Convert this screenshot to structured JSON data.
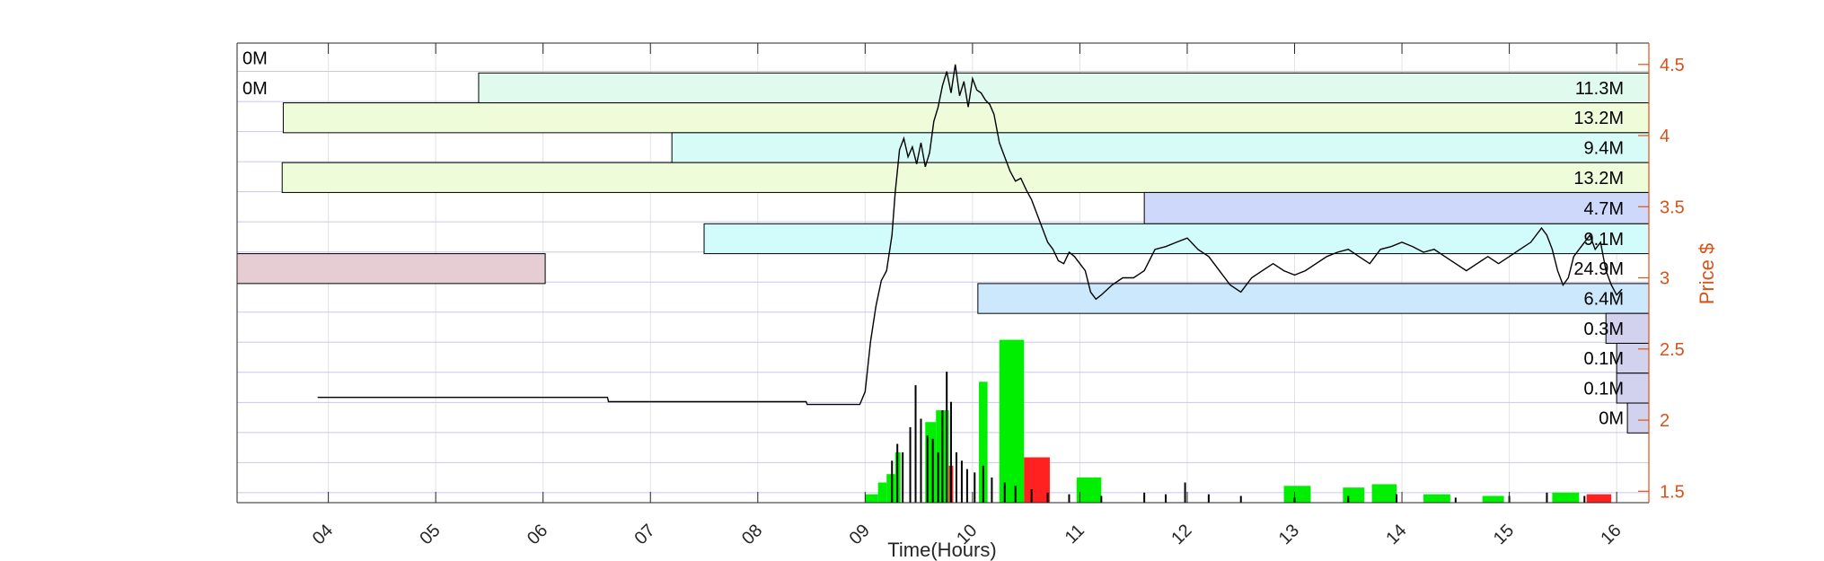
{
  "chart_data": {
    "type": "volume-profile-price",
    "xlabel": "Time(Hours)",
    "ylabel_right": "Price $",
    "x_range": [
      3.15,
      16.3
    ],
    "x_ticks": [
      "04",
      "05",
      "06",
      "07",
      "08",
      "09",
      "10",
      "11",
      "12",
      "13",
      "14",
      "15",
      "16"
    ],
    "x_tick_values": [
      4,
      5,
      6,
      7,
      8,
      9,
      10,
      11,
      12,
      13,
      14,
      15,
      16
    ],
    "price_range": [
      1.42,
      4.65
    ],
    "price_ticks": [
      "1.5",
      "2",
      "2.5",
      "3",
      "3.5",
      "4",
      "4.5"
    ],
    "price_tick_values": [
      1.5,
      2,
      2.5,
      3,
      3.5,
      4,
      4.5
    ],
    "grid": true,
    "colors": {
      "price_axis": "#d95319",
      "grid": "#c8c8ef",
      "buy_volume": "#00ee00",
      "sell_volume": "#ff2020",
      "price_line": "#000000"
    },
    "volume_profile": [
      {
        "label": "0M",
        "price_low": 4.44,
        "price_high": 4.65,
        "x_start": 16.3,
        "color": "#ffffff",
        "label_side": "left"
      },
      {
        "label": "0M",
        "price_low": 4.23,
        "price_high": 4.44,
        "x_start": 16.3,
        "color": "#ffffff",
        "label_side": "left"
      },
      {
        "label": "11.3M",
        "price_low": 4.23,
        "price_high": 4.44,
        "x_start": 5.4,
        "color": "#e0fbee",
        "label_side": "right"
      },
      {
        "label": "13.2M",
        "price_low": 4.02,
        "price_high": 4.23,
        "x_start": 3.58,
        "color": "#eefcd9",
        "label_side": "right"
      },
      {
        "label": "9.4M",
        "price_low": 3.81,
        "price_high": 4.02,
        "x_start": 7.2,
        "color": "#d7fcf8",
        "label_side": "right"
      },
      {
        "label": "13.2M",
        "price_low": 3.6,
        "price_high": 3.81,
        "x_start": 3.57,
        "color": "#eefcd9",
        "label_side": "right"
      },
      {
        "label": "4.7M",
        "price_low": 3.38,
        "price_high": 3.6,
        "x_start": 11.6,
        "color": "#cdd8fb",
        "label_side": "right"
      },
      {
        "label": "9.1M",
        "price_low": 3.17,
        "price_high": 3.38,
        "x_start": 7.5,
        "color": "#d2fcfb",
        "label_side": "right"
      },
      {
        "label": "24.9M",
        "price_low": 2.96,
        "price_high": 3.17,
        "x_start": 3.15,
        "x_end": 6.02,
        "color": "#e5cdd3",
        "label_side": "right"
      },
      {
        "label": "6.4M",
        "price_low": 2.75,
        "price_high": 2.96,
        "x_start": 10.05,
        "color": "#cce8fc",
        "label_side": "right"
      },
      {
        "label": "0.3M",
        "price_low": 2.54,
        "price_high": 2.75,
        "x_start": 15.9,
        "color": "#d2d2ee",
        "label_side": "right"
      },
      {
        "label": "0.1M",
        "price_low": 2.33,
        "price_high": 2.54,
        "x_start": 16.0,
        "color": "#d2d2ee",
        "label_side": "right"
      },
      {
        "label": "0.1M",
        "price_low": 2.12,
        "price_high": 2.33,
        "x_start": 16.0,
        "color": "#d2d2ee",
        "label_side": "right"
      },
      {
        "label": "0M",
        "price_low": 1.91,
        "price_high": 2.12,
        "x_start": 16.1,
        "color": "#d2d2ee",
        "label_side": "right"
      }
    ],
    "price_series": {
      "x": [
        3.9,
        4.9,
        5.9,
        6.6,
        6.61,
        7.5,
        8.45,
        8.46,
        8.95,
        9.0,
        9.05,
        9.1,
        9.15,
        9.2,
        9.25,
        9.28,
        9.32,
        9.36,
        9.4,
        9.44,
        9.48,
        9.52,
        9.56,
        9.6,
        9.64,
        9.68,
        9.72,
        9.76,
        9.8,
        9.84,
        9.88,
        9.92,
        9.96,
        10.0,
        10.04,
        10.08,
        10.12,
        10.16,
        10.2,
        10.25,
        10.3,
        10.35,
        10.4,
        10.45,
        10.5,
        10.55,
        10.6,
        10.65,
        10.7,
        10.75,
        10.8,
        10.85,
        10.9,
        10.95,
        11.0,
        11.05,
        11.1,
        11.15,
        11.2,
        11.3,
        11.4,
        11.5,
        11.6,
        11.7,
        11.8,
        11.9,
        12.0,
        12.1,
        12.2,
        12.3,
        12.4,
        12.5,
        12.6,
        12.7,
        12.8,
        12.9,
        13.0,
        13.1,
        13.2,
        13.3,
        13.4,
        13.5,
        13.6,
        13.7,
        13.8,
        13.9,
        14.0,
        14.1,
        14.2,
        14.3,
        14.4,
        14.5,
        14.6,
        14.7,
        14.8,
        14.9,
        15.0,
        15.1,
        15.2,
        15.3,
        15.35,
        15.4,
        15.45,
        15.5,
        15.55,
        15.6,
        15.65,
        15.7,
        15.75,
        15.8,
        15.85,
        15.9,
        15.95,
        16.0,
        16.05
      ],
      "y": [
        2.16,
        2.16,
        2.16,
        2.16,
        2.13,
        2.13,
        2.13,
        2.11,
        2.11,
        2.2,
        2.55,
        2.8,
        2.98,
        3.05,
        3.3,
        3.6,
        3.9,
        3.98,
        3.85,
        3.92,
        3.8,
        3.95,
        3.78,
        3.88,
        4.1,
        4.2,
        4.35,
        4.45,
        4.3,
        4.5,
        4.28,
        4.38,
        4.2,
        4.4,
        4.32,
        4.3,
        4.25,
        4.22,
        4.15,
        3.95,
        3.85,
        3.75,
        3.68,
        3.7,
        3.62,
        3.55,
        3.45,
        3.35,
        3.25,
        3.2,
        3.12,
        3.1,
        3.18,
        3.15,
        3.1,
        3.05,
        2.9,
        2.85,
        2.88,
        2.95,
        3.0,
        3.0,
        3.05,
        3.2,
        3.22,
        3.25,
        3.28,
        3.2,
        3.15,
        3.05,
        2.95,
        2.9,
        3.0,
        3.05,
        3.1,
        3.05,
        3.02,
        3.05,
        3.1,
        3.15,
        3.18,
        3.2,
        3.15,
        3.1,
        3.2,
        3.22,
        3.25,
        3.22,
        3.18,
        3.2,
        3.15,
        3.1,
        3.05,
        3.1,
        3.15,
        3.1,
        3.15,
        3.2,
        3.25,
        3.35,
        3.3,
        3.2,
        3.05,
        2.95,
        3.0,
        3.15,
        3.2,
        3.25,
        3.3,
        3.2,
        3.25,
        3.05,
        2.95,
        2.88,
        2.92
      ]
    },
    "volume_bars": [
      {
        "x0": 9.0,
        "x1": 9.12,
        "height": 0.05,
        "side": "buy"
      },
      {
        "x0": 9.12,
        "x1": 9.2,
        "height": 0.12,
        "side": "buy"
      },
      {
        "x0": 9.2,
        "x1": 9.28,
        "height": 0.17,
        "side": "buy"
      },
      {
        "x0": 9.28,
        "x1": 9.33,
        "height": 0.3,
        "side": "buy"
      },
      {
        "x0": 9.56,
        "x1": 9.66,
        "height": 0.48,
        "side": "buy"
      },
      {
        "x0": 9.66,
        "x1": 9.78,
        "height": 0.55,
        "side": "buy"
      },
      {
        "x0": 9.78,
        "x1": 9.82,
        "height": 0.22,
        "side": "sell"
      },
      {
        "x0": 10.06,
        "x1": 10.14,
        "height": 0.72,
        "side": "buy"
      },
      {
        "x0": 10.25,
        "x1": 10.48,
        "height": 0.97,
        "side": "buy"
      },
      {
        "x0": 10.48,
        "x1": 10.72,
        "height": 0.27,
        "side": "sell"
      },
      {
        "x0": 10.97,
        "x1": 11.2,
        "height": 0.15,
        "side": "buy"
      },
      {
        "x0": 12.9,
        "x1": 13.15,
        "height": 0.1,
        "side": "buy"
      },
      {
        "x0": 13.45,
        "x1": 13.65,
        "height": 0.09,
        "side": "buy"
      },
      {
        "x0": 13.72,
        "x1": 13.95,
        "height": 0.11,
        "side": "buy"
      },
      {
        "x0": 14.2,
        "x1": 14.45,
        "height": 0.05,
        "side": "buy"
      },
      {
        "x0": 14.75,
        "x1": 14.95,
        "height": 0.04,
        "side": "buy"
      },
      {
        "x0": 15.4,
        "x1": 15.65,
        "height": 0.06,
        "side": "buy"
      },
      {
        "x0": 15.72,
        "x1": 15.95,
        "height": 0.05,
        "side": "sell"
      }
    ],
    "volume_spikes": [
      {
        "x": 9.25,
        "height": 0.25
      },
      {
        "x": 9.3,
        "height": 0.35
      },
      {
        "x": 9.35,
        "height": 0.3
      },
      {
        "x": 9.42,
        "height": 0.45
      },
      {
        "x": 9.47,
        "height": 0.7
      },
      {
        "x": 9.52,
        "height": 0.5
      },
      {
        "x": 9.58,
        "height": 0.4
      },
      {
        "x": 9.63,
        "height": 0.38
      },
      {
        "x": 9.68,
        "height": 0.3
      },
      {
        "x": 9.72,
        "height": 0.55
      },
      {
        "x": 9.76,
        "height": 0.78
      },
      {
        "x": 9.8,
        "height": 0.6
      },
      {
        "x": 9.85,
        "height": 0.3
      },
      {
        "x": 9.9,
        "height": 0.25
      },
      {
        "x": 9.95,
        "height": 0.2
      },
      {
        "x": 10.02,
        "height": 0.18
      },
      {
        "x": 10.1,
        "height": 0.22
      },
      {
        "x": 10.18,
        "height": 0.15
      },
      {
        "x": 10.3,
        "height": 0.12
      },
      {
        "x": 10.4,
        "height": 0.1
      },
      {
        "x": 10.55,
        "height": 0.08
      },
      {
        "x": 10.7,
        "height": 0.06
      },
      {
        "x": 10.9,
        "height": 0.05
      },
      {
        "x": 11.2,
        "height": 0.04
      },
      {
        "x": 11.6,
        "height": 0.06
      },
      {
        "x": 11.8,
        "height": 0.05
      },
      {
        "x": 11.98,
        "height": 0.12
      },
      {
        "x": 12.2,
        "height": 0.05
      },
      {
        "x": 12.5,
        "height": 0.04
      },
      {
        "x": 13.0,
        "height": 0.03
      },
      {
        "x": 13.5,
        "height": 0.04
      },
      {
        "x": 13.95,
        "height": 0.05
      },
      {
        "x": 14.5,
        "height": 0.03
      },
      {
        "x": 15.0,
        "height": 0.04
      },
      {
        "x": 15.35,
        "height": 0.06
      },
      {
        "x": 15.7,
        "height": 0.04
      }
    ]
  }
}
